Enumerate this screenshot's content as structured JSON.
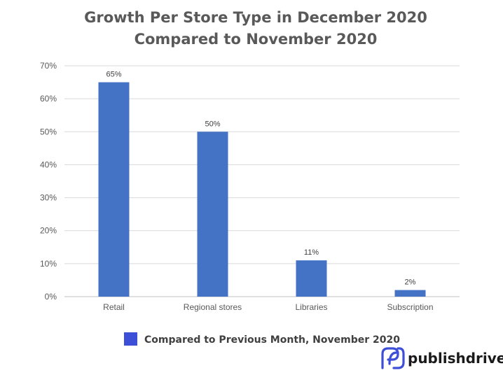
{
  "chart_data": {
    "type": "bar",
    "title": "Growth Per Store Type in December 2020",
    "subtitle": "Compared to November 2020",
    "categories": [
      "Retail",
      "Regional stores",
      "Libraries",
      "Subscription"
    ],
    "series": [
      {
        "name": "Compared to Previous Month, November 2020",
        "values": [
          65,
          50,
          11,
          2
        ],
        "labels": [
          "65%",
          "50%",
          "11%",
          "2%"
        ]
      }
    ],
    "yticks": [
      "0%",
      "10%",
      "20%",
      "30%",
      "40%",
      "50%",
      "60%",
      "70%"
    ],
    "ylim": [
      0,
      70
    ],
    "grid": true,
    "legend_position": "bottom",
    "colors": {
      "bar": "#4472c4",
      "legend_swatch": "#3d4fd6",
      "grid": "#d9d9d9",
      "text": "#595959"
    }
  },
  "brand": {
    "name": "publishdrive",
    "logo_icon": "publishdrive-logo-icon",
    "color": "#3d4fd6"
  }
}
